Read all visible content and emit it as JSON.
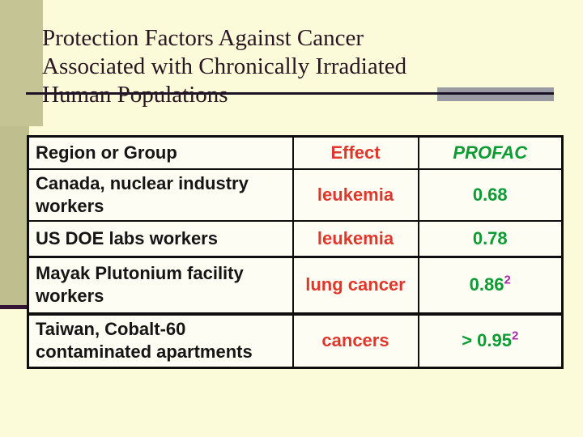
{
  "slide": {
    "title": "Protection Factors Against Cancer\nAssociated with Chronically Irradiated\nHuman Populations"
  },
  "table": {
    "headers": {
      "region": "Region or Group",
      "effect": "Effect",
      "profac": "PROFAC"
    },
    "rows": [
      {
        "region": "Canada, nuclear industry\nworkers",
        "effect": "leukemia",
        "profac": "0.68",
        "profac_sup": ""
      },
      {
        "region": "US DOE labs workers",
        "effect": "leukemia",
        "profac": "0.78",
        "profac_sup": ""
      },
      {
        "region": "Mayak Plutonium facility\nworkers",
        "effect": "lung cancer",
        "profac": "0.86",
        "profac_sup": "2"
      },
      {
        "region": "Taiwan, Cobalt-60\ncontaminated apartments",
        "effect": "cancers",
        "profac": "> 0.95",
        "profac_sup": "2"
      }
    ]
  },
  "colors": {
    "background_cream": "#FBFBD9",
    "olive_band": "#BEBE8E",
    "olive_band_light": "#C4C494",
    "maroon_rule": "#331433",
    "title_text": "#2A1622",
    "title_rule": "#1C1228",
    "gray_accent_bar": "#9B9BA3",
    "table_text_black": "#151515",
    "effect_red": "#E0362B",
    "profac_green": "#0D9B33",
    "superscript_purple": "#AA2BAA",
    "table_cell_bg": "#FDFDF3"
  }
}
